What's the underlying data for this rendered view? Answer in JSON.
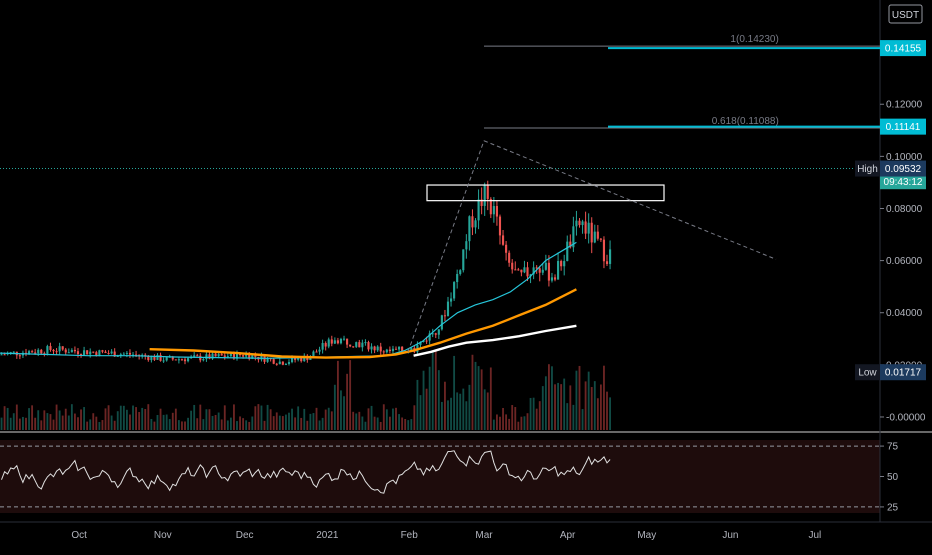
{
  "currency": "USDT",
  "chart_data": {
    "type": "candlestick",
    "x_axis": {
      "ticks": [
        {
          "label": "Oct",
          "t": 0.09
        },
        {
          "label": "Nov",
          "t": 0.185
        },
        {
          "label": "Dec",
          "t": 0.278
        },
        {
          "label": "2021",
          "t": 0.372
        },
        {
          "label": "Feb",
          "t": 0.465
        },
        {
          "label": "Mar",
          "t": 0.55
        },
        {
          "label": "Apr",
          "t": 0.645
        },
        {
          "label": "May",
          "t": 0.735
        },
        {
          "label": "Jun",
          "t": 0.83
        },
        {
          "label": "Jul",
          "t": 0.926
        }
      ]
    },
    "y_axis": {
      "range": [
        -0.005,
        0.16
      ],
      "ticks": [
        "0.12000",
        "0.10000",
        "0.08000",
        "0.06000",
        "0.04000",
        "0.02000",
        "-0.00000"
      ],
      "tick_values": [
        0.12,
        0.1,
        0.08,
        0.06,
        0.04,
        0.02,
        0.0
      ]
    },
    "price_labels": [
      {
        "text": "0.14155",
        "value": 0.14155,
        "color": "#00bcd4",
        "type": "fib-line"
      },
      {
        "text": "0.11141",
        "value": 0.11141,
        "color": "#00bcd4",
        "type": "fib-line"
      },
      {
        "text": "0.09507",
        "value": 0.09507,
        "color": "#26a69a",
        "type": "last-price",
        "sub": "09:43:12"
      }
    ],
    "high_label": {
      "name": "High",
      "text": "0.09532",
      "value": 0.09532
    },
    "low_label": {
      "name": "Low",
      "text": "0.01717",
      "value": 0.01717
    },
    "fib_levels": [
      {
        "text": "1(0.14230)",
        "value": 0.1423
      },
      {
        "text": "0.618(0.11088)",
        "value": 0.11088
      }
    ],
    "rsi": {
      "ticks": [
        "75",
        "50",
        "25"
      ],
      "tick_values": [
        75,
        50,
        25
      ],
      "range": [
        20,
        80
      ],
      "upper": 75,
      "lower": 25
    },
    "series": [
      {
        "type": "sma",
        "color": "#26c6da",
        "points": [
          [
            0.0,
            0.0245
          ],
          [
            0.05,
            0.024
          ],
          [
            0.1,
            0.0235
          ],
          [
            0.15,
            0.0235
          ],
          [
            0.2,
            0.023
          ],
          [
            0.25,
            0.0228
          ],
          [
            0.3,
            0.0225
          ],
          [
            0.35,
            0.0228
          ],
          [
            0.4,
            0.0232
          ],
          [
            0.44,
            0.0235
          ],
          [
            0.46,
            0.0255
          ],
          [
            0.48,
            0.029
          ],
          [
            0.5,
            0.035
          ],
          [
            0.52,
            0.04
          ],
          [
            0.54,
            0.043
          ],
          [
            0.56,
            0.045
          ],
          [
            0.58,
            0.048
          ],
          [
            0.6,
            0.053
          ],
          [
            0.62,
            0.06
          ],
          [
            0.64,
            0.064
          ],
          [
            0.655,
            0.067
          ]
        ]
      },
      {
        "type": "sma",
        "color": "#ff9800",
        "points": [
          [
            0.17,
            0.026
          ],
          [
            0.22,
            0.0255
          ],
          [
            0.27,
            0.0245
          ],
          [
            0.32,
            0.0232
          ],
          [
            0.37,
            0.0228
          ],
          [
            0.42,
            0.023
          ],
          [
            0.45,
            0.024
          ],
          [
            0.47,
            0.0255
          ],
          [
            0.5,
            0.0285
          ],
          [
            0.53,
            0.032
          ],
          [
            0.56,
            0.035
          ],
          [
            0.59,
            0.039
          ],
          [
            0.62,
            0.043
          ],
          [
            0.655,
            0.049
          ]
        ]
      },
      {
        "type": "sma",
        "color": "#ffffff",
        "points": [
          [
            0.47,
            0.0235
          ],
          [
            0.49,
            0.025
          ],
          [
            0.51,
            0.027
          ],
          [
            0.53,
            0.0285
          ],
          [
            0.56,
            0.0295
          ],
          [
            0.59,
            0.031
          ],
          [
            0.62,
            0.033
          ],
          [
            0.655,
            0.035
          ]
        ]
      }
    ]
  }
}
